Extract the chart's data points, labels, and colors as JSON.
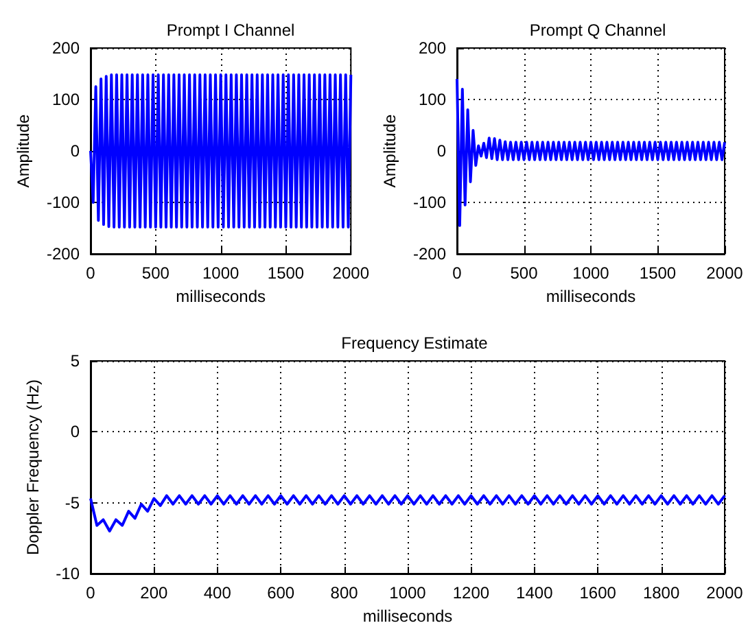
{
  "chart_data": [
    {
      "type": "line",
      "title": "Prompt I Channel",
      "xlabel": "milliseconds",
      "ylabel": "Amplitude",
      "xlim": [
        0,
        2000
      ],
      "xticks": [
        0,
        500,
        1000,
        1500,
        2000
      ],
      "ylim": [
        -200,
        200
      ],
      "yticks": [
        -200,
        -100,
        0,
        100,
        200
      ],
      "grid": true,
      "marker": "none",
      "series": [
        {
          "color": "#0000ff",
          "x": [
            0,
            20,
            40,
            60,
            80,
            100,
            120,
            140,
            160,
            180,
            200,
            220,
            240,
            260,
            280,
            300,
            320,
            340,
            360,
            380,
            400,
            420,
            440,
            460,
            480,
            500,
            520,
            540,
            560,
            580,
            600,
            620,
            640,
            660,
            680,
            700,
            720,
            740,
            760,
            780,
            800,
            820,
            840,
            860,
            880,
            900,
            920,
            940,
            960,
            980,
            1000,
            1020,
            1040,
            1060,
            1080,
            1100,
            1120,
            1140,
            1160,
            1180,
            1200,
            1220,
            1240,
            1260,
            1280,
            1300,
            1320,
            1340,
            1360,
            1380,
            1400,
            1420,
            1440,
            1460,
            1480,
            1500,
            1520,
            1540,
            1560,
            1580,
            1600,
            1620,
            1640,
            1660,
            1680,
            1700,
            1720,
            1740,
            1760,
            1780,
            1800,
            1820,
            1840,
            1860,
            1880,
            1900,
            1920,
            1940,
            1960,
            1980,
            2000
          ],
          "values": [
            0,
            -100,
            125,
            -135,
            140,
            -143,
            145,
            -147,
            148,
            -148,
            148,
            -148,
            148,
            -148,
            148,
            -148,
            148,
            -148,
            148,
            -148,
            148,
            -148,
            148,
            -148,
            148,
            -148,
            148,
            -148,
            148,
            -148,
            148,
            -148,
            148,
            -148,
            148,
            -148,
            148,
            -148,
            148,
            -148,
            148,
            -148,
            148,
            -148,
            148,
            -148,
            148,
            -148,
            148,
            -148,
            148,
            -148,
            148,
            -148,
            148,
            -148,
            148,
            -148,
            148,
            -148,
            148,
            -148,
            148,
            -148,
            148,
            -148,
            148,
            -148,
            148,
            -148,
            148,
            -148,
            148,
            -148,
            148,
            -148,
            148,
            -148,
            148,
            -148,
            148,
            -148,
            148,
            -148,
            148,
            -148,
            148,
            -148,
            148,
            -148,
            148,
            -148,
            148,
            -148,
            148,
            -148,
            148,
            -148,
            148,
            -148,
            148
          ]
        }
      ]
    },
    {
      "type": "line",
      "title": "Prompt Q Channel",
      "xlabel": "milliseconds",
      "ylabel": "Amplitude",
      "xlim": [
        0,
        2000
      ],
      "xticks": [
        0,
        500,
        1000,
        1500,
        2000
      ],
      "ylim": [
        -200,
        200
      ],
      "yticks": [
        -200,
        -100,
        0,
        100,
        200
      ],
      "grid": true,
      "marker": "none",
      "series": [
        {
          "color": "#0000ff",
          "x": [
            0,
            20,
            40,
            60,
            80,
            100,
            120,
            140,
            160,
            180,
            200,
            220,
            240,
            260,
            280,
            300,
            320,
            340,
            360,
            380,
            400,
            420,
            440,
            460,
            480,
            500,
            520,
            540,
            560,
            580,
            600,
            620,
            640,
            660,
            680,
            700,
            720,
            740,
            760,
            780,
            800,
            820,
            840,
            860,
            880,
            900,
            920,
            940,
            960,
            980,
            1000,
            1020,
            1040,
            1060,
            1080,
            1100,
            1120,
            1140,
            1160,
            1180,
            1200,
            1220,
            1240,
            1260,
            1280,
            1300,
            1320,
            1340,
            1360,
            1380,
            1400,
            1420,
            1440,
            1460,
            1480,
            1500,
            1520,
            1540,
            1560,
            1580,
            1600,
            1620,
            1640,
            1660,
            1680,
            1700,
            1720,
            1740,
            1760,
            1780,
            1800,
            1820,
            1840,
            1860,
            1880,
            1900,
            1920,
            1940,
            1960,
            1980,
            2000
          ],
          "values": [
            140,
            -145,
            120,
            -105,
            80,
            -60,
            40,
            -28,
            10,
            -10,
            15,
            -13,
            25,
            -15,
            24,
            -17,
            21,
            -17,
            18,
            -17,
            17,
            -17,
            17,
            -17,
            17,
            -17,
            17,
            -17,
            17,
            -17,
            17,
            -17,
            17,
            -17,
            17,
            -17,
            17,
            -17,
            17,
            -17,
            17,
            -17,
            17,
            -17,
            17,
            -17,
            17,
            -17,
            17,
            -17,
            17,
            -17,
            17,
            -17,
            17,
            -17,
            17,
            -17,
            17,
            -17,
            17,
            -17,
            17,
            -17,
            17,
            -17,
            17,
            -17,
            17,
            -17,
            17,
            -17,
            17,
            -17,
            17,
            -17,
            17,
            -17,
            17,
            -17,
            17,
            -17,
            17,
            -17,
            17,
            -17,
            17,
            -17,
            17,
            -17,
            17,
            -17,
            17,
            -17,
            17,
            -17,
            17,
            -17,
            17,
            -17,
            17
          ]
        }
      ]
    },
    {
      "type": "line",
      "title": "Frequency Estimate",
      "xlabel": "milliseconds",
      "ylabel": "Doppler Frequency (Hz)",
      "xlim": [
        0,
        2000
      ],
      "xticks": [
        0,
        200,
        400,
        600,
        800,
        1000,
        1200,
        1400,
        1600,
        1800,
        2000
      ],
      "ylim": [
        -10,
        5
      ],
      "yticks": [
        -10,
        -5,
        0,
        5
      ],
      "grid": true,
      "marker": "none",
      "series": [
        {
          "color": "#0000ff",
          "x": [
            0,
            20,
            40,
            60,
            80,
            100,
            120,
            140,
            160,
            180,
            200,
            220,
            240,
            260,
            280,
            300,
            320,
            340,
            360,
            380,
            400,
            420,
            440,
            460,
            480,
            500,
            520,
            540,
            560,
            580,
            600,
            620,
            640,
            660,
            680,
            700,
            720,
            740,
            760,
            780,
            800,
            820,
            840,
            860,
            880,
            900,
            920,
            940,
            960,
            980,
            1000,
            1020,
            1040,
            1060,
            1080,
            1100,
            1120,
            1140,
            1160,
            1180,
            1200,
            1220,
            1240,
            1260,
            1280,
            1300,
            1320,
            1340,
            1360,
            1380,
            1400,
            1420,
            1440,
            1460,
            1480,
            1500,
            1520,
            1540,
            1560,
            1580,
            1600,
            1620,
            1640,
            1660,
            1680,
            1700,
            1720,
            1740,
            1760,
            1780,
            1800,
            1820,
            1840,
            1860,
            1880,
            1900,
            1920,
            1940,
            1960,
            1980,
            2000
          ],
          "values": [
            -4.7,
            -6.6,
            -6.2,
            -7,
            -6.2,
            -6.6,
            -5.6,
            -6.1,
            -5.1,
            -5.6,
            -4.7,
            -5.2,
            -4.5,
            -5.1,
            -4.5,
            -5.1,
            -4.5,
            -5.1,
            -4.5,
            -5.1,
            -4.5,
            -5.1,
            -4.5,
            -5.1,
            -4.5,
            -5.1,
            -4.5,
            -5.1,
            -4.5,
            -5.1,
            -4.5,
            -5.1,
            -4.5,
            -5.1,
            -4.5,
            -5.1,
            -4.5,
            -5.1,
            -4.5,
            -5.1,
            -4.5,
            -5.1,
            -4.5,
            -5.1,
            -4.5,
            -5.1,
            -4.5,
            -5.1,
            -4.5,
            -5.1,
            -4.5,
            -5.1,
            -4.5,
            -5.1,
            -4.5,
            -5.1,
            -4.5,
            -5.1,
            -4.5,
            -5.1,
            -4.5,
            -5.1,
            -4.5,
            -5.1,
            -4.5,
            -5.1,
            -4.5,
            -5.1,
            -4.5,
            -5.1,
            -4.5,
            -5.1,
            -4.5,
            -5.1,
            -4.5,
            -5.1,
            -4.5,
            -5.1,
            -4.5,
            -5.1,
            -4.5,
            -5.1,
            -4.5,
            -5.1,
            -4.5,
            -5.1,
            -4.5,
            -5.1,
            -4.5,
            -5.1,
            -4.5,
            -5.1,
            -4.5,
            -5.1,
            -4.5,
            -5.1,
            -4.5,
            -5.1,
            -4.5,
            -5.1,
            -4.5
          ]
        }
      ]
    }
  ]
}
